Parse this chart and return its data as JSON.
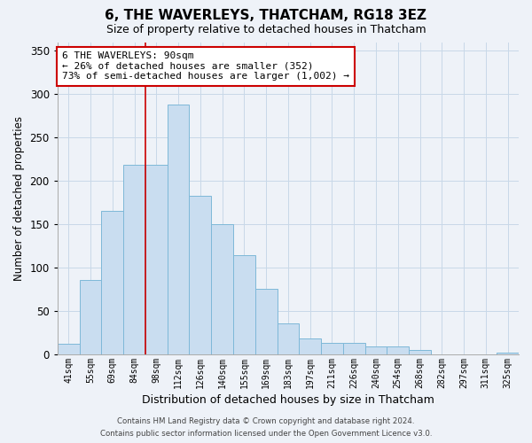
{
  "title": "6, THE WAVERLEYS, THATCHAM, RG18 3EZ",
  "subtitle": "Size of property relative to detached houses in Thatcham",
  "xlabel": "Distribution of detached houses by size in Thatcham",
  "ylabel": "Number of detached properties",
  "bar_labels": [
    "41sqm",
    "55sqm",
    "69sqm",
    "84sqm",
    "98sqm",
    "112sqm",
    "126sqm",
    "140sqm",
    "155sqm",
    "169sqm",
    "183sqm",
    "197sqm",
    "211sqm",
    "226sqm",
    "240sqm",
    "254sqm",
    "268sqm",
    "282sqm",
    "297sqm",
    "311sqm",
    "325sqm"
  ],
  "bar_values": [
    12,
    85,
    165,
    218,
    218,
    288,
    183,
    150,
    114,
    75,
    35,
    18,
    13,
    13,
    9,
    9,
    5,
    0,
    0,
    0,
    2
  ],
  "bar_color": "#c9ddf0",
  "bar_edgecolor": "#7eb8d8",
  "grid_color": "#c8d8e8",
  "vline_color": "#cc0000",
  "annotation_title": "6 THE WAVERLEYS: 90sqm",
  "annotation_line2": "← 26% of detached houses are smaller (352)",
  "annotation_line3": "73% of semi-detached houses are larger (1,002) →",
  "annotation_box_facecolor": "#ffffff",
  "annotation_box_edgecolor": "#cc0000",
  "ylim": [
    0,
    360
  ],
  "yticks": [
    0,
    50,
    100,
    150,
    200,
    250,
    300,
    350
  ],
  "footer_line1": "Contains HM Land Registry data © Crown copyright and database right 2024.",
  "footer_line2": "Contains public sector information licensed under the Open Government Licence v3.0.",
  "background_color": "#eef2f8"
}
